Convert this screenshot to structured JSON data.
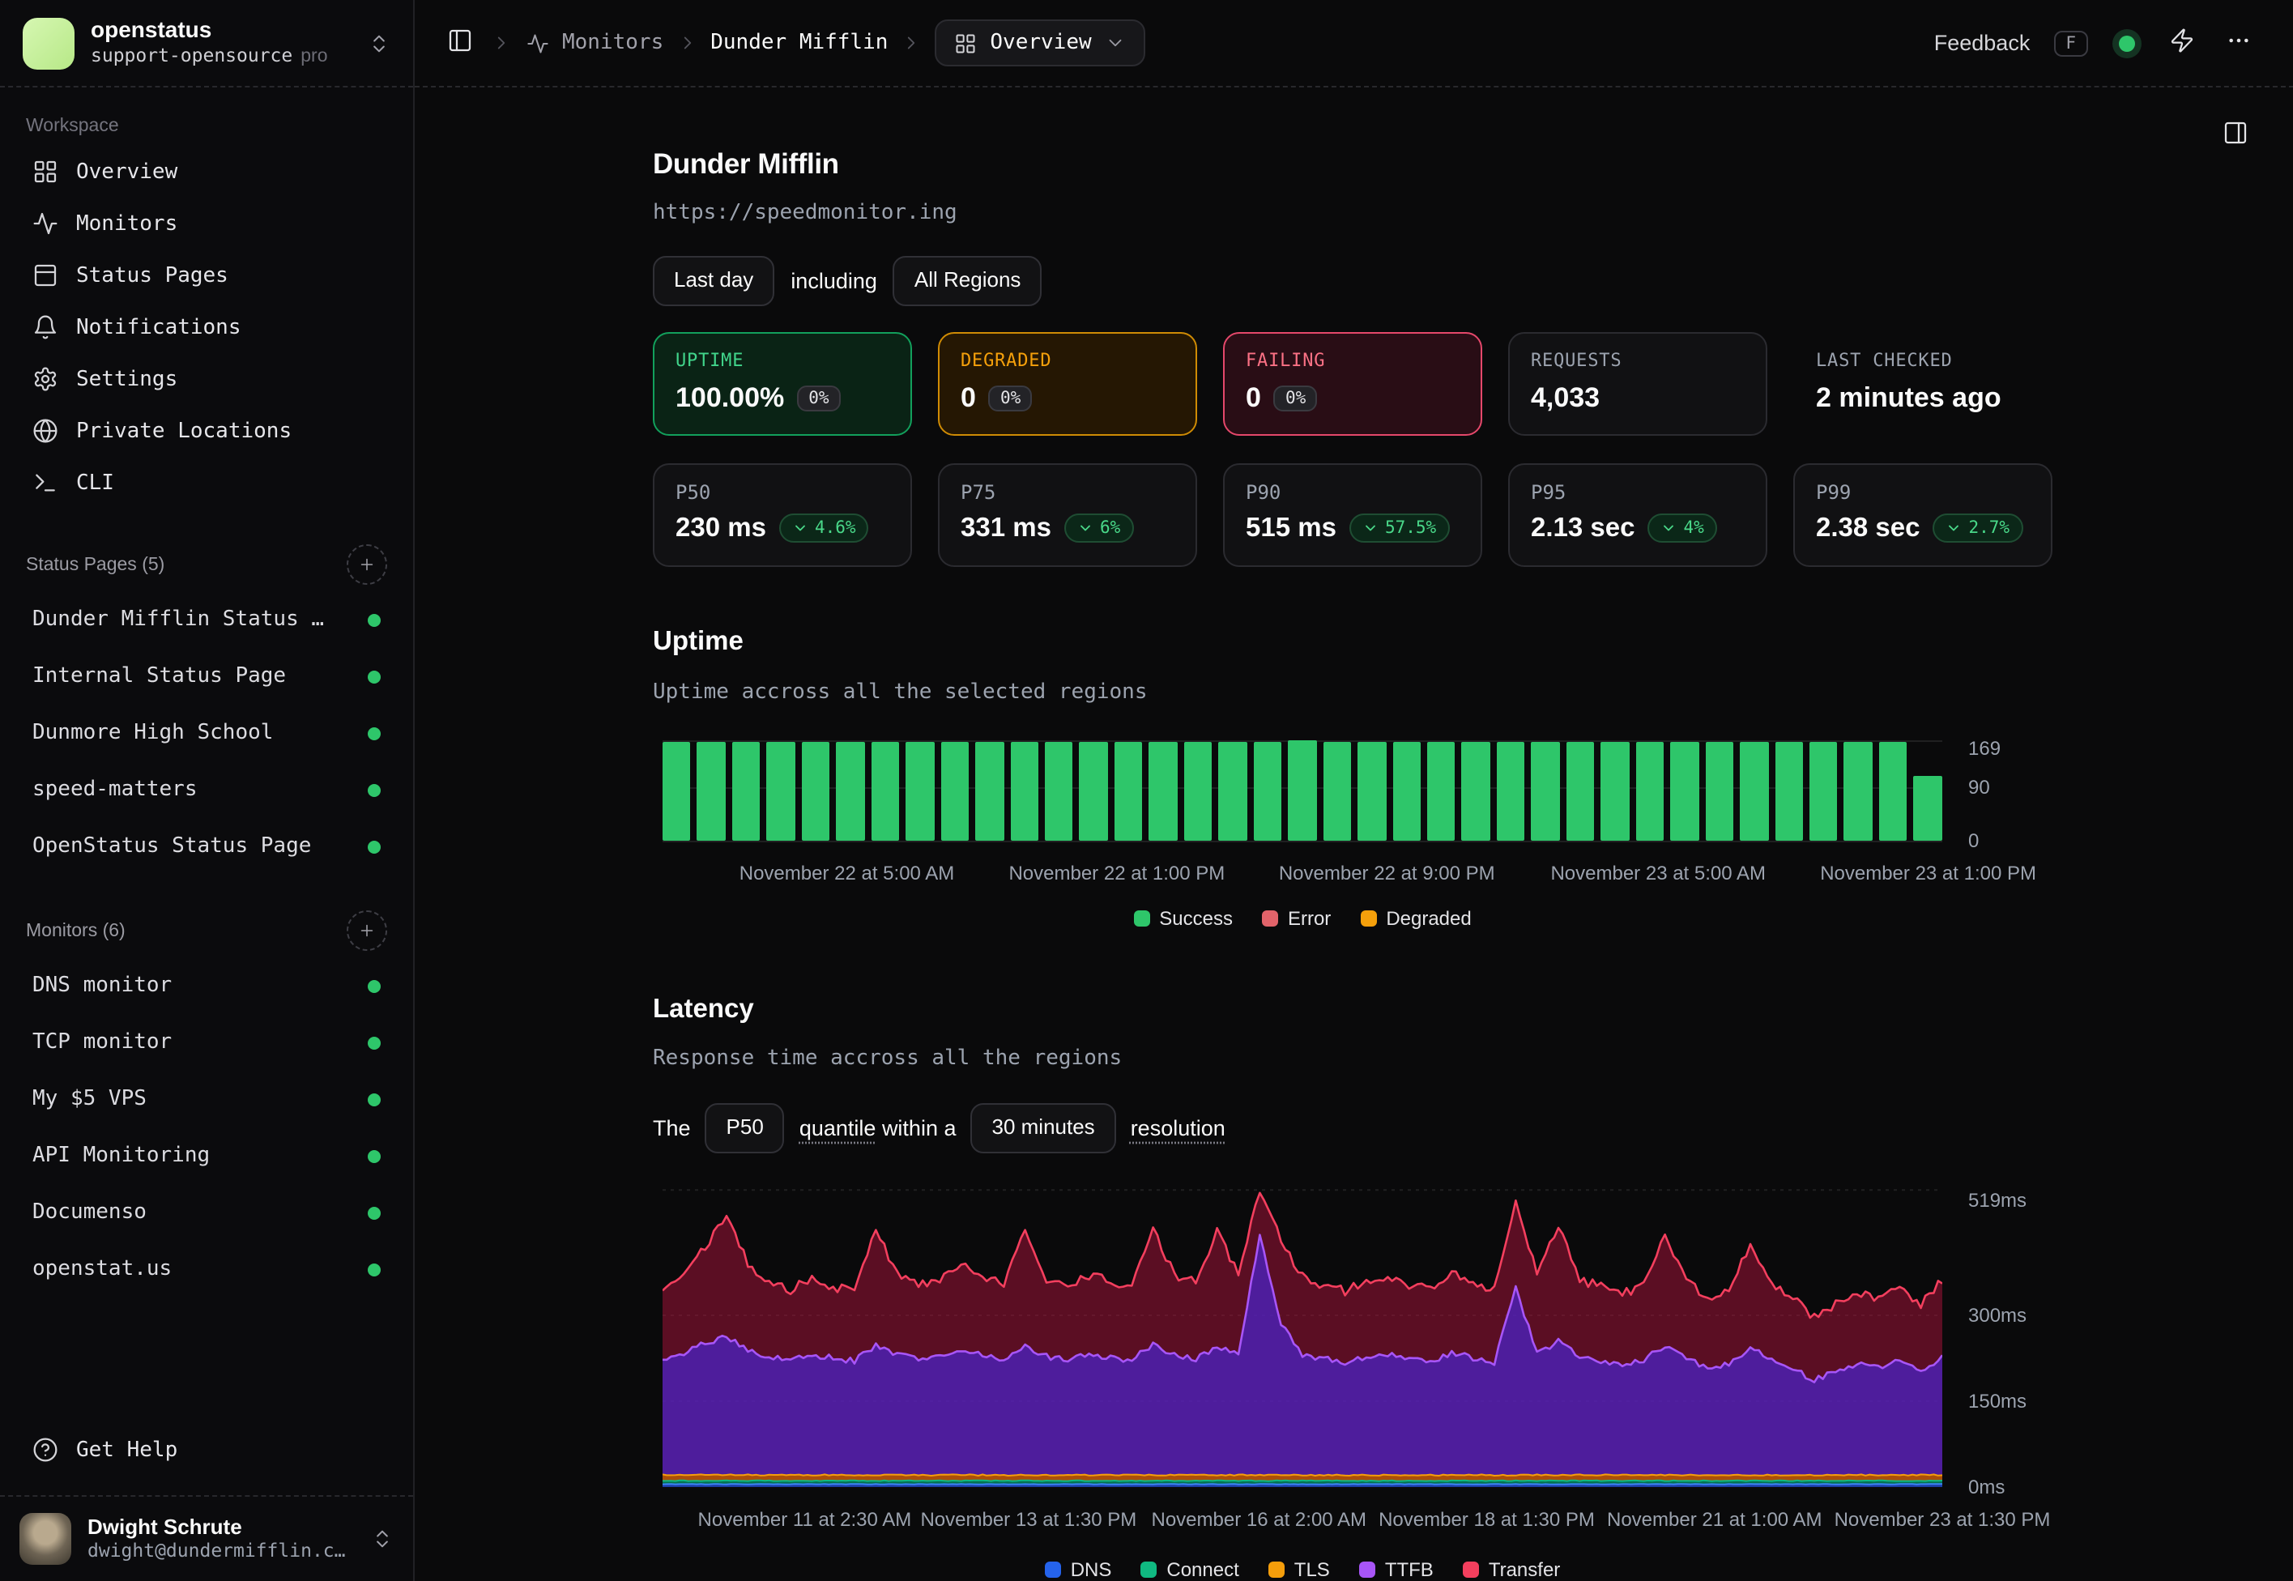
{
  "sidebar": {
    "org": {
      "name": "openstatus",
      "plan": "support-opensource",
      "plan_badge": "pro"
    },
    "workspace_label": "Workspace",
    "nav": [
      {
        "icon": "grid-icon",
        "label": "Overview"
      },
      {
        "icon": "activity-icon",
        "label": "Monitors"
      },
      {
        "icon": "panel-top-icon",
        "label": "Status Pages"
      },
      {
        "icon": "bell-icon",
        "label": "Notifications"
      },
      {
        "icon": "gear-icon",
        "label": "Settings"
      },
      {
        "icon": "globe-icon",
        "label": "Private Locations"
      },
      {
        "icon": "terminal-icon",
        "label": "CLI"
      }
    ],
    "status_pages": {
      "label": "Status Pages (5)",
      "items": [
        "Dunder Mifflin Status …",
        "Internal Status Page",
        "Dunmore High School",
        "speed-matters",
        "OpenStatus Status Page"
      ]
    },
    "monitors": {
      "label": "Monitors (6)",
      "items": [
        "DNS monitor",
        "TCP monitor",
        "My $5 VPS",
        "API Monitoring",
        "Documenso",
        "openstat.us"
      ]
    },
    "get_help": "Get Help",
    "user": {
      "name": "Dwight Schrute",
      "email": "dwight@dundermifflin.c…"
    }
  },
  "header": {
    "breadcrumb": {
      "monitors": "Monitors",
      "page": "Dunder Mifflin",
      "view": "Overview"
    },
    "feedback": "Feedback",
    "feedback_key": "F"
  },
  "overview": {
    "title": "Dunder Mifflin",
    "url": "https://speedmonitor.ing",
    "time_range": "Last day",
    "including": "including",
    "regions": "All Regions"
  },
  "stats": [
    {
      "label": "UPTIME",
      "value": "100.00%",
      "badge": "0%",
      "variant": "success"
    },
    {
      "label": "DEGRADED",
      "value": "0",
      "badge": "0%",
      "variant": "warning"
    },
    {
      "label": "FAILING",
      "value": "0",
      "badge": "0%",
      "variant": "danger"
    },
    {
      "label": "REQUESTS",
      "value": "4,033",
      "badge": null,
      "variant": "neutral"
    },
    {
      "label": "LAST CHECKED",
      "value": "2 minutes ago",
      "badge": null,
      "variant": "plain"
    }
  ],
  "percentiles": [
    {
      "label": "P50",
      "value": "230 ms",
      "delta": "4.6%"
    },
    {
      "label": "P75",
      "value": "331 ms",
      "delta": "6%"
    },
    {
      "label": "P90",
      "value": "515 ms",
      "delta": "57.5%"
    },
    {
      "label": "P95",
      "value": "2.13 sec",
      "delta": "4%"
    },
    {
      "label": "P99",
      "value": "2.38 sec",
      "delta": "2.7%"
    }
  ],
  "uptime_section": {
    "title": "Uptime",
    "subtitle": "Uptime accross all the selected regions"
  },
  "latency_section": {
    "title": "Latency",
    "subtitle": "Response time accross all the regions",
    "sentence": {
      "prefix": "The",
      "quantile_value": "P50",
      "middle_1": "quantile",
      "middle_2": "within a",
      "resolution_value": "30 minutes",
      "suffix": "resolution"
    }
  },
  "chart_data": [
    {
      "type": "bar",
      "title": "Uptime accross all the selected regions",
      "bar_color": "#2ec66a",
      "ylim": [
        0,
        169
      ],
      "grid": true,
      "values": [
        165,
        165,
        165,
        165,
        165,
        165,
        165,
        165,
        165,
        165,
        165,
        165,
        165,
        165,
        165,
        165,
        165,
        165,
        169,
        165,
        165,
        165,
        165,
        165,
        165,
        165,
        165,
        165,
        165,
        165,
        165,
        165,
        165,
        165,
        165,
        165,
        108
      ],
      "y_ticks": [
        {
          "value": 169,
          "label": "169"
        },
        {
          "value": 90,
          "label": "90"
        },
        {
          "value": 0,
          "label": "0"
        }
      ],
      "x_ticks": [
        {
          "label": "November 22 at 5:00 AM",
          "x": 0.144
        },
        {
          "label": "November 22 at 1:00 PM",
          "x": 0.355
        },
        {
          "label": "November 22 at 9:00 PM",
          "x": 0.566
        },
        {
          "label": "November 23 at 5:00 AM",
          "x": 0.778
        },
        {
          "label": "November 23 at 1:00 PM",
          "x": 0.989
        }
      ],
      "legend": [
        {
          "label": "Success",
          "color": "#2ec66a"
        },
        {
          "label": "Error",
          "color": "#e2636a"
        },
        {
          "label": "Degraded",
          "color": "#f5a00b"
        }
      ],
      "legend_position": "bottom-center"
    },
    {
      "type": "area",
      "stacked": true,
      "title": "Response time accross all the regions",
      "unit": "ms",
      "ylim": [
        0,
        532
      ],
      "grid": true,
      "y_ticks": [
        {
          "value": 519,
          "label": "519ms"
        },
        {
          "value": 300,
          "label": "300ms"
        },
        {
          "value": 150,
          "label": "150ms"
        },
        {
          "value": 0,
          "label": "0ms"
        }
      ],
      "x_ticks": [
        {
          "label": "November 11 at 2:30 AM",
          "x": 0.111
        },
        {
          "label": "November 13 at 1:30 PM",
          "x": 0.286
        },
        {
          "label": "November 16 at 2:00 AM",
          "x": 0.466
        },
        {
          "label": "November 18 at 1:30 PM",
          "x": 0.644
        },
        {
          "label": "November 21 at 1:00 AM",
          "x": 0.822
        },
        {
          "label": "November 23 at 1:30 PM",
          "x": 1.0
        }
      ],
      "legend": [
        {
          "label": "DNS",
          "color": "#2563eb"
        },
        {
          "label": "Connect",
          "color": "#10b981"
        },
        {
          "label": "TLS",
          "color": "#f59e0b"
        },
        {
          "label": "TTFB",
          "color": "#a855f7"
        },
        {
          "label": "Transfer",
          "color": "#f43f5e"
        }
      ],
      "legend_position": "bottom-center",
      "series": [
        {
          "name": "DNS",
          "color": "#3b82f6",
          "fill": "#1e40af",
          "values": 5
        },
        {
          "name": "Connect",
          "color": "#10b981",
          "fill": "#047857",
          "values": 11
        },
        {
          "name": "TLS",
          "color": "#f59e0b",
          "fill": "#b45309",
          "values": 21
        },
        {
          "name": "TTFB",
          "color": "#a855f7",
          "fill": "#5b21b6",
          "values": [
            225,
            232,
            252,
            262,
            238,
            228,
            222,
            230,
            226,
            220,
            248,
            232,
            224,
            228,
            238,
            232,
            224,
            246,
            228,
            222,
            232,
            226,
            222,
            250,
            230,
            224,
            246,
            232,
            440,
            285,
            232,
            224,
            218,
            228,
            232,
            222,
            220,
            234,
            226,
            218,
            350,
            232,
            256,
            226,
            220,
            214,
            222,
            248,
            226,
            208,
            214,
            245,
            222,
            205,
            188,
            200,
            215,
            208,
            220,
            200,
            228
          ]
        },
        {
          "name": "Transfer",
          "color": "#f43f5e",
          "fill": "#9f1239",
          "values": [
            350,
            368,
            420,
            470,
            392,
            358,
            344,
            366,
            350,
            340,
            452,
            370,
            352,
            362,
            386,
            370,
            352,
            448,
            362,
            352,
            368,
            360,
            352,
            455,
            368,
            358,
            448,
            372,
            519,
            430,
            368,
            352,
            342,
            360,
            370,
            350,
            348,
            372,
            360,
            345,
            500,
            370,
            458,
            362,
            350,
            338,
            352,
            440,
            362,
            330,
            340,
            425,
            358,
            330,
            296,
            318,
            340,
            330,
            348,
            320,
            362
          ]
        }
      ]
    }
  ]
}
